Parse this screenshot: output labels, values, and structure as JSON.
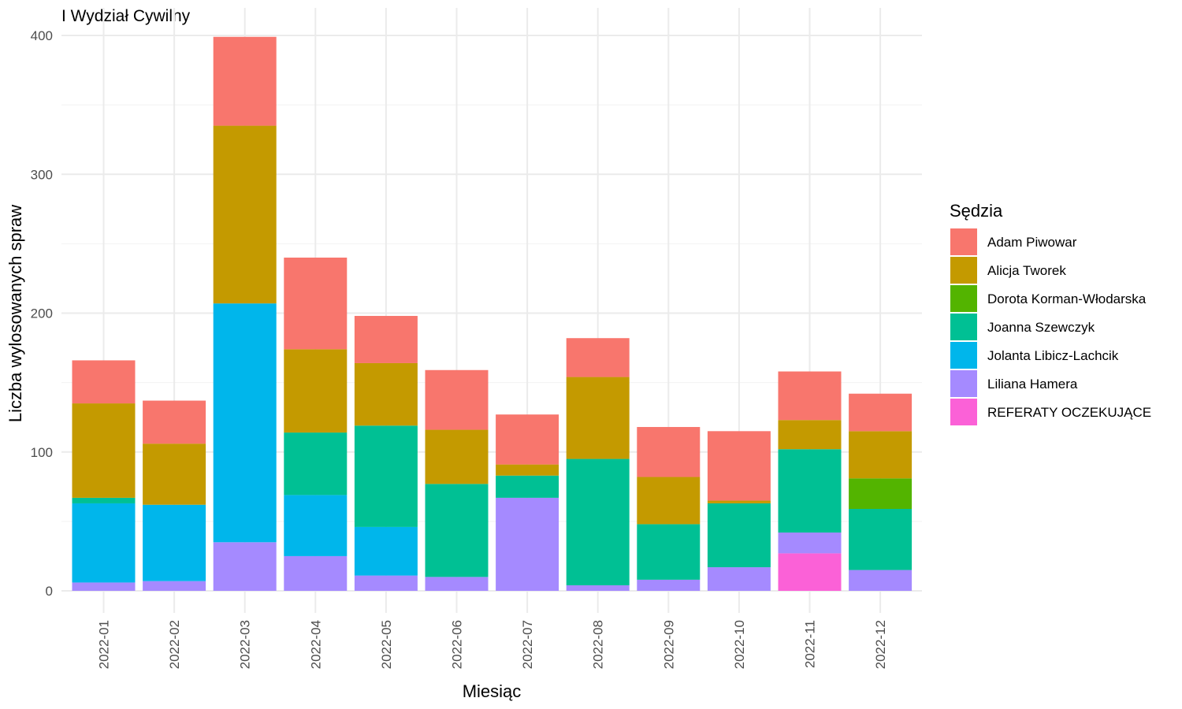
{
  "chart_data": {
    "type": "bar",
    "stacked": true,
    "title": "I Wydział Cywilny",
    "xlabel": "Miesiąc",
    "ylabel": "Liczba wylosowanych spraw",
    "ylim": [
      0,
      400
    ],
    "yticks": [
      "0",
      "100",
      "200",
      "300",
      "400"
    ],
    "grid": true,
    "legend": {
      "title": "Sędzia",
      "position": "right"
    },
    "categories": [
      "2022-01",
      "2022-02",
      "2022-03",
      "2022-04",
      "2022-05",
      "2022-06",
      "2022-07",
      "2022-08",
      "2022-09",
      "2022-10",
      "2022-11",
      "2022-12"
    ],
    "series": [
      {
        "name": "Adam Piwowar",
        "color": "#F8766D",
        "values": [
          31,
          31,
          64,
          66,
          34,
          43,
          36,
          28,
          36,
          50,
          35,
          27
        ]
      },
      {
        "name": "Alicja Tworek",
        "color": "#C49A00",
        "values": [
          68,
          44,
          128,
          60,
          45,
          39,
          8,
          59,
          34,
          2,
          21,
          34
        ]
      },
      {
        "name": "Dorota Korman-Włodarska",
        "color": "#53B400",
        "values": [
          0,
          0,
          0,
          0,
          0,
          0,
          0,
          0,
          0,
          0,
          0,
          22
        ]
      },
      {
        "name": "Joanna Szewczyk",
        "color": "#00C094",
        "values": [
          4,
          0,
          0,
          45,
          73,
          67,
          16,
          91,
          40,
          46,
          60,
          44
        ]
      },
      {
        "name": "Jolanta Libicz-Lachcik",
        "color": "#00B6EB",
        "values": [
          57,
          55,
          172,
          44,
          35,
          0,
          0,
          0,
          0,
          0,
          0,
          0
        ]
      },
      {
        "name": "Liliana Hamera",
        "color": "#A58AFF",
        "values": [
          6,
          7,
          35,
          25,
          11,
          10,
          67,
          4,
          8,
          17,
          15,
          15
        ]
      },
      {
        "name": "REFERATY OCZEKUJĄCE",
        "color": "#FB61D7",
        "values": [
          0,
          0,
          0,
          0,
          0,
          0,
          0,
          0,
          0,
          0,
          27,
          0
        ]
      }
    ]
  }
}
